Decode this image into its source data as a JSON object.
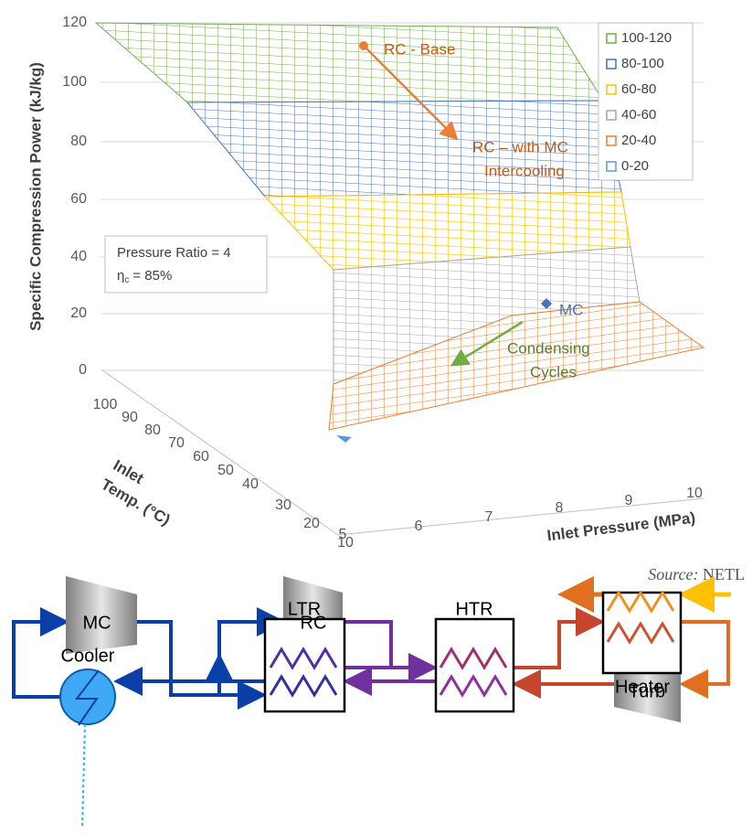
{
  "chart": {
    "y_axis_label": "Specific Compression Power (kJ/kg)",
    "yticks": [
      0,
      20,
      40,
      60,
      80,
      100,
      120
    ],
    "x_axis_label": "Inlet Pressure (MPa)",
    "xticks": [
      5,
      6,
      7,
      8,
      9,
      10
    ],
    "z_axis_label": [
      "Inlet",
      "Temp. (°C)"
    ],
    "zticks": [
      100,
      90,
      80,
      70,
      60,
      50,
      40,
      30,
      20,
      10
    ],
    "legend": [
      {
        "label": "100-120",
        "color": "#70ad47"
      },
      {
        "label": "80-100",
        "color": "#4472c4"
      },
      {
        "label": "60-80",
        "color": "#ffc000"
      },
      {
        "label": "40-60",
        "color": "#a5a5a5"
      },
      {
        "label": "20-40",
        "color": "#ed7d31"
      },
      {
        "label": "0-20",
        "color": "#5b9bd5"
      }
    ],
    "annotations": {
      "rc_base": "RC - Base",
      "rc_mc": [
        "RC – with MC",
        "Intercooling"
      ],
      "mc": "MC",
      "condensing": [
        "Condensing",
        "Cycles"
      ]
    },
    "info_box": {
      "line1": "Pressure Ratio = 4",
      "eta": "η",
      "eta_sub": "c",
      "eta_value": "= 85%"
    },
    "source": {
      "label": "Source:",
      "name": "NETL"
    }
  },
  "diagram": {
    "mc": "MC",
    "rc": "RC",
    "ltr": "LTR",
    "htr": "HTR",
    "heater": "Heater",
    "cooler": "Cooler",
    "turbine": "Turb"
  }
}
